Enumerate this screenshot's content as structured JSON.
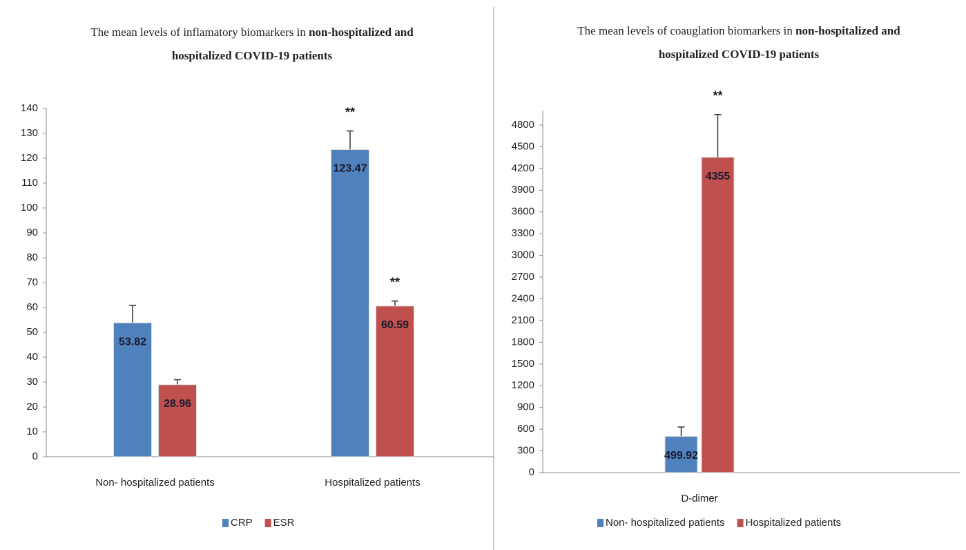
{
  "chart_data": [
    {
      "type": "bar",
      "title_lines": [
        [
          {
            "text": "The mean levels of inflamatory biomarkers in ",
            "bold": false
          },
          {
            "text": "non-hospitalized and",
            "bold": true
          }
        ],
        [
          {
            "text": "hospitalized COVID-19 patients",
            "bold": true
          }
        ]
      ],
      "categories": [
        "Non- hospitalized patients",
        "Hospitalized patients"
      ],
      "series": [
        {
          "name": "CRP",
          "color": "#4f81bd",
          "values": [
            53.82,
            123.47
          ],
          "errors": [
            7,
            7.5
          ]
        },
        {
          "name": "ESR",
          "color": "#c0504d",
          "values": [
            28.96,
            60.59
          ],
          "errors": [
            2,
            2
          ]
        }
      ],
      "annotations": [
        {
          "text": "**",
          "series": 1,
          "category": 1
        },
        {
          "text": "**",
          "series": 0,
          "category": 1
        }
      ],
      "ylim": [
        0,
        140
      ],
      "yticks": [
        0,
        10,
        20,
        30,
        40,
        50,
        60,
        70,
        80,
        90,
        100,
        110,
        120,
        130,
        140
      ],
      "legend": "bottom"
    },
    {
      "type": "bar",
      "title_lines": [
        [
          {
            "text": "The mean levels of coauglation biomarkers in ",
            "bold": false
          },
          {
            "text": "non-hospitalized and",
            "bold": true
          }
        ],
        [
          {
            "text": "hospitalized COVID-19 patients",
            "bold": true
          }
        ]
      ],
      "categories": [
        "D-dimer"
      ],
      "series": [
        {
          "name": "Non- hospitalized patients",
          "color": "#4f81bd",
          "values": [
            499.92
          ],
          "errors": [
            130
          ]
        },
        {
          "name": "Hospitalized patients",
          "color": "#c0504d",
          "values": [
            4355
          ],
          "errors": [
            590
          ]
        }
      ],
      "annotations": [
        {
          "text": "**",
          "series": 1,
          "category": 0
        }
      ],
      "ylim": [
        0,
        5000
      ],
      "yticks": [
        0,
        300,
        600,
        900,
        1200,
        1500,
        1800,
        2100,
        2400,
        2700,
        3000,
        3300,
        3600,
        3900,
        4200,
        4500,
        4800
      ],
      "legend": "bottom"
    }
  ]
}
